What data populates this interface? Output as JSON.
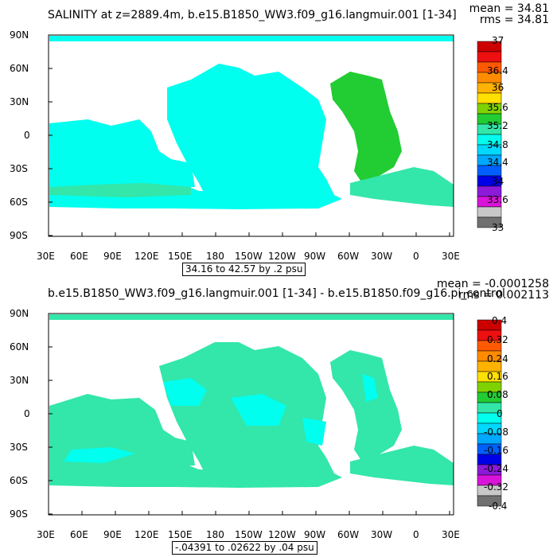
{
  "panels": [
    {
      "title": "SALINITY  at  z=2889.4m,  b.e15.B1850_WW3.f09_g16.langmuir.001  [1-34]",
      "mean": "mean  =  34.81",
      "rms": "rms  =  34.81",
      "range": "34.16 to 42.57 by .2 psu",
      "lat_labels": [
        "90N",
        "60N",
        "30N",
        "0",
        "30S",
        "60S",
        "90S"
      ],
      "lon_labels": [
        "30E",
        "60E",
        "90E",
        "120E",
        "150E",
        "180",
        "150W",
        "120W",
        "90W",
        "60W",
        "30W",
        "0",
        "30E"
      ],
      "colorbar_labels": [
        "37",
        "36.4",
        "36",
        "35.6",
        "35.2",
        "34.8",
        "34.4",
        "34",
        "33.6",
        "33"
      ],
      "colorbar_colors": [
        "#cc0000",
        "#ee1010",
        "#ff5a00",
        "#ff8c00",
        "#ffb300",
        "#ffe000",
        "#7fd200",
        "#22cc33",
        "#33e6aa",
        "#00ffee",
        "#00d8ff",
        "#00a8ff",
        "#0060ff",
        "#0000e6",
        "#8c1ad9",
        "#d914d9",
        "#c8c8c8",
        "#707070"
      ],
      "fill": {
        "ocean_main": "#00ffee",
        "atlantic": "#22cc33",
        "southern": "#33e6aa"
      }
    },
    {
      "title": "b.e15.B1850_WW3.f09_g16.langmuir.001  [1-34]  -  b.e15.B1850.f09_g16.pi_control",
      "mean": "mean  =  -0.0001258",
      "rms": "rms  =  0.002113",
      "range": "-.04391 to .02622 by .04 psu",
      "lat_labels": [
        "90N",
        "60N",
        "30N",
        "0",
        "30S",
        "60S",
        "90S"
      ],
      "lon_labels": [
        "30E",
        "60E",
        "90E",
        "120E",
        "150E",
        "180",
        "150W",
        "120W",
        "90W",
        "60W",
        "30W",
        "0",
        "30E"
      ],
      "colorbar_labels": [
        "0.4",
        "0.32",
        "0.24",
        "0.16",
        "0.08",
        "0",
        "-0.08",
        "-0.16",
        "-0.24",
        "-0.32",
        "-0.4"
      ],
      "colorbar_colors": [
        "#cc0000",
        "#ee1010",
        "#ff5a00",
        "#ff8c00",
        "#ffb300",
        "#ffe000",
        "#7fd200",
        "#22cc33",
        "#33e6aa",
        "#00ffee",
        "#00d8ff",
        "#00a8ff",
        "#0060ff",
        "#0000e6",
        "#8c1ad9",
        "#d914d9",
        "#c8c8c8",
        "#707070"
      ],
      "fill": {
        "ocean_main": "#33e6aa",
        "atlantic": "#33e6aa",
        "southern": "#33e6aa",
        "anomaly": "#00ffee"
      }
    }
  ]
}
